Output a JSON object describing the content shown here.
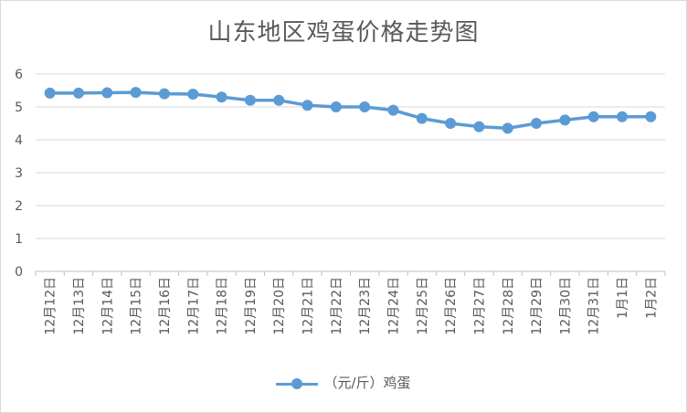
{
  "chart_data": {
    "type": "line",
    "title": "山东地区鸡蛋价格走势图",
    "categories": [
      "12月12日",
      "12月13日",
      "12月14日",
      "12月15日",
      "12月16日",
      "12月17日",
      "12月18日",
      "12月19日",
      "12月20日",
      "12月21日",
      "12月22日",
      "12月23日",
      "12月24日",
      "12月25日",
      "12月26日",
      "12月27日",
      "12月28日",
      "12月29日",
      "12月30日",
      "12月31日",
      "1月1日",
      "1月2日"
    ],
    "series": [
      {
        "name": "（元/斤）鸡蛋",
        "color": "#5b9bd5",
        "values": [
          5.42,
          5.42,
          5.43,
          5.44,
          5.4,
          5.39,
          5.3,
          5.2,
          5.2,
          5.05,
          5.0,
          5.0,
          4.9,
          4.65,
          4.5,
          4.4,
          4.35,
          4.5,
          4.6,
          4.7,
          4.7,
          4.7
        ]
      }
    ],
    "yticks": [
      "0",
      "1",
      "2",
      "3",
      "4",
      "5",
      "6"
    ],
    "ylim": [
      0,
      6
    ],
    "grid": true,
    "legend": "bottom"
  }
}
